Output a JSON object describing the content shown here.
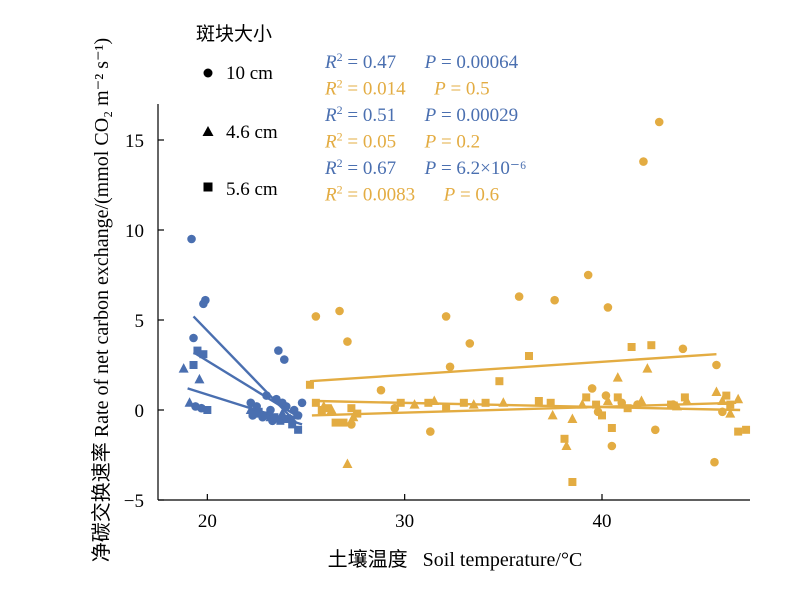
{
  "chart_data": {
    "type": "scatter",
    "xlabel_cn": "土壤温度",
    "xlabel_en": "Soil temperature/°C",
    "ylabel_cn": "净碳交换速率",
    "ylabel_en": "Rate of net carbon exchange/(mmol CO₂ m⁻² s⁻¹)",
    "xlim": [
      17.5,
      47.5
    ],
    "ylim": [
      -5,
      17
    ],
    "xticks": [
      20,
      30,
      40
    ],
    "yticks": [
      -5,
      0,
      5,
      10,
      15
    ],
    "colors": {
      "blue": "#4a6fb0",
      "orange": "#e3ac42"
    },
    "legend": {
      "title": "斑块大小",
      "items": [
        {
          "marker": "circle",
          "label": "10 cm"
        },
        {
          "marker": "triangle",
          "label": "4.6 cm"
        },
        {
          "marker": "square",
          "label": "5.6 cm"
        }
      ]
    },
    "stats": [
      {
        "color": "blue",
        "r2": "0.47",
        "p": "0.00064"
      },
      {
        "color": "orange",
        "r2": "0.014",
        "p": "0.5"
      },
      {
        "color": "blue",
        "r2": "0.51",
        "p": "0.00029"
      },
      {
        "color": "orange",
        "r2": "0.05",
        "p": "0.2"
      },
      {
        "color": "blue",
        "r2": "0.67",
        "p": "6.2×10⁻⁶"
      },
      {
        "color": "orange",
        "r2": "0.0083",
        "p": "0.6"
      }
    ],
    "fit_lines": [
      {
        "color": "blue",
        "marker": "circle",
        "x": [
          19.3,
          24.5
        ],
        "y": [
          5.2,
          -0.7
        ]
      },
      {
        "color": "blue",
        "marker": "triangle",
        "x": [
          19.3,
          24.5
        ],
        "y": [
          3.2,
          -0.3
        ]
      },
      {
        "color": "blue",
        "marker": "square",
        "x": [
          19.0,
          24.8
        ],
        "y": [
          1.2,
          -0.8
        ]
      },
      {
        "color": "orange",
        "marker": "circle",
        "x": [
          25.2,
          45.8
        ],
        "y": [
          1.6,
          3.1
        ]
      },
      {
        "color": "orange",
        "marker": "triangle",
        "x": [
          25.3,
          46.8
        ],
        "y": [
          -0.3,
          0.4
        ]
      },
      {
        "color": "orange",
        "marker": "square",
        "x": [
          25.5,
          47.0
        ],
        "y": [
          0.5,
          0.0
        ]
      }
    ],
    "series": [
      {
        "name": "10 cm",
        "color": "blue",
        "marker": "circle",
        "points": [
          [
            19.2,
            9.5
          ],
          [
            19.8,
            5.9
          ],
          [
            19.9,
            6.1
          ],
          [
            19.3,
            4.0
          ],
          [
            19.4,
            0.2
          ],
          [
            19.7,
            0.1
          ],
          [
            22.2,
            0.4
          ],
          [
            22.3,
            -0.3
          ],
          [
            22.5,
            0.2
          ],
          [
            22.8,
            -0.4
          ],
          [
            23.0,
            0.8
          ],
          [
            23.2,
            0.0
          ],
          [
            23.3,
            -0.6
          ],
          [
            23.5,
            0.6
          ],
          [
            23.6,
            3.3
          ],
          [
            23.8,
            0.4
          ],
          [
            23.9,
            2.8
          ],
          [
            24.0,
            0.2
          ],
          [
            24.2,
            -0.5
          ],
          [
            24.4,
            0.0
          ],
          [
            24.6,
            -0.3
          ],
          [
            24.8,
            0.4
          ]
        ]
      },
      {
        "name": "4.6 cm",
        "color": "blue",
        "marker": "triangle",
        "points": [
          [
            18.8,
            2.3
          ],
          [
            19.1,
            0.4
          ],
          [
            19.6,
            1.7
          ],
          [
            22.2,
            0.0
          ],
          [
            22.5,
            -0.2
          ],
          [
            23.2,
            -0.4
          ],
          [
            23.8,
            -0.2
          ],
          [
            24.2,
            -0.5
          ],
          [
            24.5,
            -0.3
          ]
        ]
      },
      {
        "name": "5.6 cm",
        "color": "blue",
        "marker": "square",
        "points": [
          [
            19.3,
            2.5
          ],
          [
            19.5,
            3.3
          ],
          [
            19.8,
            3.1
          ],
          [
            20.0,
            0.0
          ],
          [
            22.3,
            -0.2
          ],
          [
            22.6,
            -0.1
          ],
          [
            23.0,
            -0.3
          ],
          [
            23.4,
            -0.4
          ],
          [
            23.7,
            -0.6
          ],
          [
            24.0,
            -0.5
          ],
          [
            24.3,
            -0.8
          ],
          [
            24.6,
            -1.1
          ]
        ]
      },
      {
        "name": "10 cm",
        "color": "orange",
        "marker": "circle",
        "points": [
          [
            25.5,
            5.2
          ],
          [
            26.7,
            5.5
          ],
          [
            27.1,
            3.8
          ],
          [
            27.3,
            -0.8
          ],
          [
            28.8,
            1.1
          ],
          [
            29.5,
            0.1
          ],
          [
            31.3,
            -1.2
          ],
          [
            32.1,
            5.2
          ],
          [
            32.3,
            2.4
          ],
          [
            33.3,
            3.7
          ],
          [
            35.8,
            6.3
          ],
          [
            37.6,
            6.1
          ],
          [
            39.3,
            7.5
          ],
          [
            39.5,
            1.2
          ],
          [
            39.8,
            -0.1
          ],
          [
            40.2,
            0.8
          ],
          [
            40.3,
            5.7
          ],
          [
            40.5,
            -2.0
          ],
          [
            41.0,
            0.4
          ],
          [
            41.8,
            0.3
          ],
          [
            42.1,
            13.8
          ],
          [
            42.7,
            -1.1
          ],
          [
            42.9,
            16.0
          ],
          [
            43.6,
            0.3
          ],
          [
            44.1,
            3.4
          ],
          [
            45.7,
            -2.9
          ],
          [
            45.8,
            2.5
          ],
          [
            46.1,
            -0.1
          ]
        ]
      },
      {
        "name": "4.6 cm",
        "color": "orange",
        "marker": "triangle",
        "points": [
          [
            25.9,
            0.2
          ],
          [
            26.3,
            0.0
          ],
          [
            27.1,
            -3.0
          ],
          [
            27.4,
            -0.4
          ],
          [
            30.5,
            0.3
          ],
          [
            31.5,
            0.5
          ],
          [
            33.5,
            0.3
          ],
          [
            35.0,
            0.4
          ],
          [
            37.5,
            -0.3
          ],
          [
            38.2,
            -2.0
          ],
          [
            38.5,
            -0.5
          ],
          [
            39.0,
            0.3
          ],
          [
            40.3,
            0.5
          ],
          [
            40.8,
            1.8
          ],
          [
            42.0,
            0.5
          ],
          [
            42.3,
            2.3
          ],
          [
            43.8,
            0.2
          ],
          [
            44.3,
            0.5
          ],
          [
            45.8,
            1.0
          ],
          [
            46.1,
            0.5
          ],
          [
            46.5,
            -0.2
          ],
          [
            46.9,
            0.6
          ]
        ]
      },
      {
        "name": "5.6 cm",
        "color": "orange",
        "marker": "square",
        "points": [
          [
            25.2,
            1.4
          ],
          [
            25.5,
            0.4
          ],
          [
            25.8,
            0.0
          ],
          [
            26.1,
            0.1
          ],
          [
            26.5,
            -0.7
          ],
          [
            26.9,
            -0.7
          ],
          [
            27.3,
            0.1
          ],
          [
            27.6,
            -0.2
          ],
          [
            29.8,
            0.4
          ],
          [
            31.2,
            0.4
          ],
          [
            32.1,
            0.1
          ],
          [
            33.0,
            0.4
          ],
          [
            34.1,
            0.4
          ],
          [
            34.8,
            1.6
          ],
          [
            36.3,
            3.0
          ],
          [
            36.8,
            0.5
          ],
          [
            37.4,
            0.4
          ],
          [
            38.1,
            -1.6
          ],
          [
            38.5,
            -4.0
          ],
          [
            39.2,
            0.7
          ],
          [
            39.7,
            0.3
          ],
          [
            40.0,
            -0.3
          ],
          [
            40.5,
            -1.0
          ],
          [
            40.8,
            0.7
          ],
          [
            41.3,
            0.1
          ],
          [
            41.5,
            3.5
          ],
          [
            42.5,
            3.6
          ],
          [
            43.5,
            0.3
          ],
          [
            44.2,
            0.7
          ],
          [
            46.3,
            0.8
          ],
          [
            46.5,
            0.3
          ],
          [
            46.9,
            -1.2
          ],
          [
            47.3,
            -1.1
          ]
        ]
      }
    ]
  }
}
